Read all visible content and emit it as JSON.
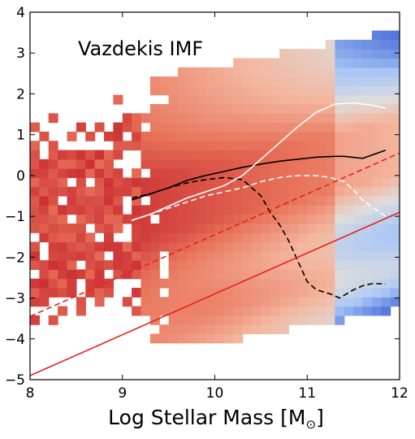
{
  "chart_data": {
    "type": "heatmap",
    "title": "",
    "annotation": "Vazdekis IMF",
    "xlabel": "Log Stellar Mass [M",
    "xlabel_sub": "⊙",
    "xlabel_close": "]",
    "ylabel": "",
    "xlim": [
      8,
      12
    ],
    "ylim": [
      -5,
      4
    ],
    "xticks": [
      {
        "value": 8,
        "label": "8"
      },
      {
        "value": 9,
        "label": "9"
      },
      {
        "value": 10,
        "label": "10"
      },
      {
        "value": 11,
        "label": "11"
      },
      {
        "value": 12,
        "label": "12"
      }
    ],
    "yticks": [
      {
        "value": -5,
        "label": "−5"
      },
      {
        "value": -4,
        "label": "−4"
      },
      {
        "value": -3,
        "label": "−3"
      },
      {
        "value": -2,
        "label": "−2"
      },
      {
        "value": -1,
        "label": "−1"
      },
      {
        "value": 0,
        "label": "0"
      },
      {
        "value": 1,
        "label": "1"
      },
      {
        "value": 2,
        "label": "2"
      },
      {
        "value": 3,
        "label": "3"
      },
      {
        "value": 4,
        "label": "4"
      }
    ],
    "heatmap": {
      "colormap": [
        "#3b5fd6",
        "#aac7f5",
        "#dddddd",
        "#f4b59d",
        "#e8735a",
        "#c7262d"
      ],
      "description_bins": "2D density of galaxies, diagonal ridges"
    },
    "series": [
      {
        "style": "solid",
        "color": "#000000",
        "x": [
          9.1,
          9.3,
          9.5,
          9.7,
          9.9,
          10.1,
          10.3,
          10.5,
          10.7,
          10.9,
          11.1,
          11.3,
          11.4,
          11.6,
          11.85
        ],
        "y": [
          -0.6,
          -0.45,
          -0.3,
          -0.12,
          0.0,
          0.1,
          0.2,
          0.28,
          0.35,
          0.4,
          0.45,
          0.47,
          0.47,
          0.42,
          0.62
        ]
      },
      {
        "style": "dashed",
        "color": "#000000",
        "x": [
          9.1,
          9.3,
          9.5,
          9.7,
          9.9,
          10.1,
          10.3,
          10.5,
          10.6,
          10.7,
          10.8,
          10.9,
          11.0,
          11.1,
          11.25,
          11.35,
          11.5,
          11.6,
          11.7,
          11.85
        ],
        "y": [
          -0.55,
          -0.45,
          -0.3,
          -0.18,
          -0.1,
          -0.05,
          -0.1,
          -0.5,
          -0.9,
          -1.2,
          -1.6,
          -2.1,
          -2.6,
          -2.8,
          -2.9,
          -3.0,
          -2.8,
          -2.7,
          -2.65,
          -2.65
        ]
      },
      {
        "style": "solid",
        "color": "#ffffff",
        "x": [
          9.1,
          9.3,
          9.5,
          9.7,
          9.9,
          10.1,
          10.3,
          10.5,
          10.7,
          10.9,
          11.1,
          11.3,
          11.5,
          11.7,
          11.85
        ],
        "y": [
          -1.1,
          -0.95,
          -0.75,
          -0.55,
          -0.4,
          -0.25,
          0.0,
          0.4,
          0.8,
          1.2,
          1.55,
          1.75,
          1.78,
          1.72,
          1.65
        ]
      },
      {
        "style": "dashed",
        "color": "#ffffff",
        "x": [
          9.1,
          9.3,
          9.5,
          9.7,
          9.9,
          10.1,
          10.3,
          10.5,
          10.7,
          10.9,
          11.1,
          11.25,
          11.4,
          11.5,
          11.6,
          11.75,
          11.85
        ],
        "y": [
          -1.1,
          -0.95,
          -0.8,
          -0.65,
          -0.5,
          -0.4,
          -0.3,
          -0.15,
          -0.05,
          0.0,
          0.0,
          -0.05,
          -0.15,
          -0.35,
          -0.6,
          -0.85,
          -1.0
        ]
      },
      {
        "style": "solid",
        "color": "#e8211c",
        "x": [
          8,
          12
        ],
        "y": [
          -4.9,
          -0.9
        ]
      },
      {
        "style": "dashed",
        "color": "#e8211c",
        "x": [
          8,
          12
        ],
        "y": [
          -3.45,
          0.55
        ]
      }
    ]
  }
}
